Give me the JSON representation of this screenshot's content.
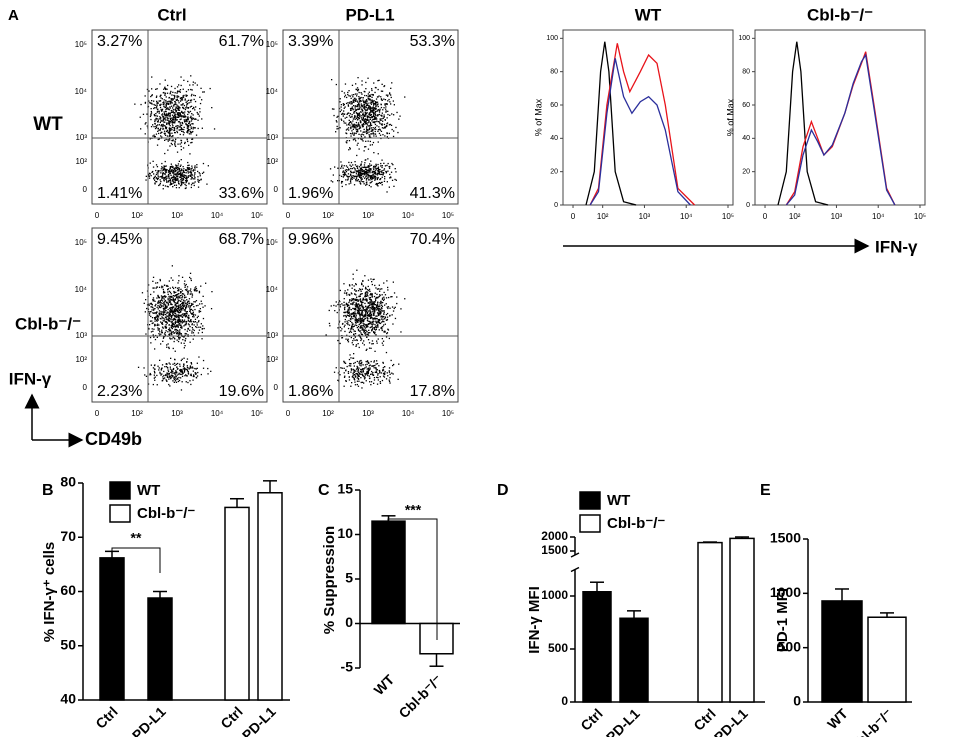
{
  "flow": {
    "panel_label": "A",
    "columns": [
      "Ctrl",
      "PD-L1"
    ],
    "rows": [
      "WT",
      "Cbl-b⁻/⁻"
    ],
    "quadrants": [
      [
        [
          "3.27%",
          "61.7%",
          "1.41%",
          "33.6%"
        ],
        [
          "3.39%",
          "53.3%",
          "1.96%",
          "41.3%"
        ]
      ],
      [
        [
          "9.45%",
          "68.7%",
          "2.23%",
          "19.6%"
        ],
        [
          "9.96%",
          "70.4%",
          "1.86%",
          "17.8%"
        ]
      ]
    ],
    "x_ticks": [
      "0",
      "10²",
      "10³",
      "10⁴",
      "10⁵"
    ],
    "y_ticks": [
      "10⁵",
      "10⁴",
      "10³",
      "10²",
      "0"
    ],
    "y_axis": "IFN-γ",
    "x_axis": "CD49b"
  },
  "histogram_x_label": "IFN-γ",
  "chart_data": [
    {
      "type": "line",
      "title": "WT",
      "y_label": "% of Max",
      "xlim": [
        1.05,
        5.12
      ],
      "ylim": [
        0,
        105
      ],
      "xticks": [
        {
          "value": 1.29,
          "label": "0"
        },
        {
          "value": 2,
          "label": "10²"
        },
        {
          "value": 3,
          "label": "10³"
        },
        {
          "value": 4,
          "label": "10⁴"
        },
        {
          "value": 5,
          "label": "10⁵"
        }
      ],
      "yticks": [
        0,
        20,
        40,
        60,
        80,
        100
      ],
      "series": [
        {
          "color": "#000000",
          "x": [
            1.6,
            1.8,
            1.95,
            2.05,
            2.15,
            2.3,
            2.5,
            2.8
          ],
          "values": [
            0,
            20,
            80,
            98,
            80,
            20,
            2,
            0
          ]
        },
        {
          "color": "#e8141b",
          "x": [
            1.7,
            1.9,
            2.1,
            2.35,
            2.5,
            2.65,
            2.9,
            3.1,
            3.3,
            3.5,
            3.8,
            4.2
          ],
          "values": [
            0,
            10,
            60,
            97,
            80,
            68,
            80,
            90,
            85,
            60,
            10,
            0
          ]
        },
        {
          "color": "#2b2f9c",
          "x": [
            1.7,
            1.9,
            2.1,
            2.3,
            2.5,
            2.7,
            2.9,
            3.1,
            3.3,
            3.5,
            3.8,
            4.1
          ],
          "values": [
            0,
            8,
            55,
            88,
            65,
            55,
            62,
            65,
            60,
            45,
            8,
            0
          ]
        }
      ]
    },
    {
      "type": "line",
      "title": "Cbl-b⁻/⁻",
      "y_label": "% of Max",
      "xlim": [
        1.05,
        5.12
      ],
      "ylim": [
        0,
        105
      ],
      "xticks": [
        {
          "value": 1.29,
          "label": "0"
        },
        {
          "value": 2,
          "label": "10²"
        },
        {
          "value": 3,
          "label": "10³"
        },
        {
          "value": 4,
          "label": "10⁴"
        },
        {
          "value": 5,
          "label": "10⁵"
        }
      ],
      "yticks": [
        0,
        20,
        40,
        60,
        80,
        100
      ],
      "series": [
        {
          "color": "#000000",
          "x": [
            1.6,
            1.8,
            1.95,
            2.05,
            2.15,
            2.3,
            2.5,
            2.8
          ],
          "values": [
            0,
            20,
            80,
            98,
            80,
            20,
            2,
            0
          ]
        },
        {
          "color": "#e8141b",
          "x": [
            1.8,
            2.0,
            2.2,
            2.4,
            2.55,
            2.7,
            2.9,
            3.2,
            3.4,
            3.6,
            3.7,
            3.9,
            4.2,
            4.4
          ],
          "values": [
            0,
            8,
            35,
            50,
            40,
            30,
            35,
            55,
            72,
            85,
            92,
            60,
            10,
            0
          ]
        },
        {
          "color": "#2b2f9c",
          "x": [
            1.8,
            2.0,
            2.2,
            2.4,
            2.55,
            2.7,
            2.9,
            3.2,
            3.4,
            3.6,
            3.7,
            3.9,
            4.2,
            4.4
          ],
          "values": [
            0,
            6,
            30,
            45,
            38,
            30,
            36,
            55,
            73,
            86,
            90,
            58,
            9,
            0
          ]
        }
      ]
    },
    {
      "type": "bar",
      "panel_label": "B",
      "y_label": "% IFN-γ⁺ cells",
      "categories": [
        "Ctrl",
        "PD-L1",
        "Ctrl",
        "PD-L1"
      ],
      "series": [
        {
          "name": "WT",
          "color": "#000000",
          "values": [
            66.2,
            58.8,
            null,
            null
          ],
          "errors": [
            1.2,
            1.2,
            null,
            null
          ]
        },
        {
          "name": "Cbl-b⁻/⁻",
          "color": "#ffffff",
          "values": [
            null,
            null,
            75.5,
            78.2
          ],
          "errors": [
            null,
            null,
            1.6,
            2.2
          ]
        }
      ],
      "ylim": [
        40,
        80
      ],
      "yticks": [
        40,
        50,
        60,
        70,
        80
      ],
      "annotation": "**"
    },
    {
      "type": "bar",
      "panel_label": "C",
      "y_label": "% Suppression",
      "categories": [
        "WT",
        "Cbl-b⁻/⁻"
      ],
      "series": [
        {
          "color": "#000000",
          "values": [
            11.5,
            null
          ],
          "errors": [
            0.6,
            null
          ]
        },
        {
          "color": "#ffffff",
          "values": [
            null,
            -3.4
          ],
          "errors": [
            null,
            1.4
          ]
        }
      ],
      "ylim": [
        -5,
        15
      ],
      "yticks": [
        -5,
        0,
        5,
        10,
        15
      ],
      "annotation": "***"
    },
    {
      "type": "bar",
      "panel_label": "D",
      "y_label": "IFN-γ MFI",
      "categories": [
        "Ctrl",
        "PD-L1",
        "Ctrl",
        "PD-L1"
      ],
      "series": [
        {
          "name": "WT",
          "color": "#000000",
          "values": [
            1040,
            790,
            null,
            null
          ],
          "errors": [
            90,
            70,
            null,
            null
          ]
        },
        {
          "name": "Cbl-b⁻/⁻",
          "color": "#ffffff",
          "values": [
            null,
            null,
            1800,
            1950
          ],
          "errors": [
            null,
            null,
            20,
            50
          ]
        }
      ],
      "ylim": [
        0,
        2000
      ],
      "axis_break": [
        1250,
        1500
      ],
      "yticks": [
        0,
        500,
        1000,
        1500,
        2000
      ]
    },
    {
      "type": "bar",
      "panel_label": "E",
      "y_label": "PD-1 MFI",
      "categories": [
        "WT",
        "Cbl-b⁻/⁻"
      ],
      "series": [
        {
          "color": "#000000",
          "values": [
            930,
            null
          ],
          "errors": [
            110,
            null
          ]
        },
        {
          "color": "#ffffff",
          "values": [
            null,
            780
          ],
          "errors": [
            null,
            40
          ]
        }
      ],
      "ylim": [
        0,
        1500
      ],
      "yticks": [
        0,
        500,
        1000,
        1500
      ]
    }
  ]
}
